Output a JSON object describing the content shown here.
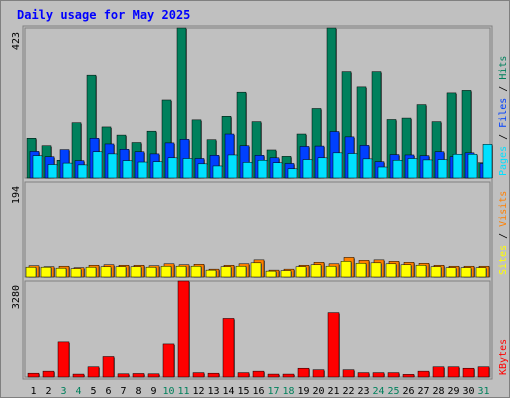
{
  "chart_data": {
    "type": "bar",
    "title": "Daily usage for May 2025",
    "categories": [
      "1",
      "2",
      "3",
      "4",
      "5",
      "6",
      "7",
      "8",
      "9",
      "10",
      "11",
      "12",
      "13",
      "14",
      "15",
      "16",
      "17",
      "18",
      "19",
      "20",
      "21",
      "22",
      "23",
      "24",
      "25",
      "26",
      "27",
      "28",
      "29",
      "30",
      "31"
    ],
    "weekend_days": [
      "3",
      "4",
      "10",
      "11",
      "17",
      "18",
      "24",
      "25",
      "31"
    ],
    "panels": [
      {
        "name": "traffic",
        "max_label": "423",
        "ylim": [
          0,
          423
        ],
        "side_labels": [
          "Pages",
          "Files",
          "Hits"
        ],
        "series": [
          {
            "name": "Hits",
            "color": "#00805c",
            "values": [
              112,
              91,
              50,
              156,
              290,
              144,
              121,
              100,
              132,
              220,
              423,
              164,
              108,
              174,
              242,
              159,
              79,
              61,
              124,
              196,
              423,
              300,
              257,
              300,
              165,
              169,
              207,
              159,
              240,
              247,
              43
            ]
          },
          {
            "name": "Files",
            "color": "#0040ff",
            "values": [
              75,
              60,
              80,
              49,
              112,
              96,
              81,
              74,
              68,
              99,
              109,
              55,
              64,
              124,
              91,
              64,
              57,
              41,
              89,
              90,
              131,
              116,
              92,
              46,
              66,
              65,
              63,
              74,
              60,
              71,
              41
            ]
          },
          {
            "name": "Pages",
            "color": "#00e0ff",
            "values": [
              63,
              38,
              42,
              37,
              74,
              68,
              49,
              45,
              46,
              57,
              55,
              40,
              34,
              65,
              44,
              50,
              43,
              26,
              52,
              57,
              71,
              69,
              54,
              31,
              50,
              55,
              51,
              52,
              67,
              67,
              95
            ]
          }
        ]
      },
      {
        "name": "visits",
        "max_label": "194",
        "ylim": [
          0,
          194
        ],
        "side_labels": [
          "Sites",
          "Visits"
        ],
        "series": [
          {
            "name": "Visits",
            "color": "#ff8000",
            "values": [
              23,
              21,
              22,
              19,
              24,
              25,
              24,
              24,
              23,
              27,
              25,
              26,
              16,
              24,
              27,
              35,
              14,
              16,
              24,
              30,
              27,
              40,
              34,
              35,
              32,
              30,
              28,
              24,
              22,
              22,
              22
            ]
          },
          {
            "name": "Sites",
            "color": "#ffff00",
            "values": [
              20,
              20,
              18,
              17,
              20,
              21,
              21,
              21,
              20,
              22,
              22,
              22,
              14,
              21,
              22,
              29,
              12,
              13,
              21,
              25,
              22,
              32,
              28,
              29,
              27,
              25,
              24,
              21,
              19,
              19,
              19
            ]
          }
        ]
      },
      {
        "name": "kbytes",
        "max_label": "3280",
        "ylim": [
          0,
          3280
        ],
        "side_labels": [
          "KBytes"
        ],
        "series": [
          {
            "name": "KBytes",
            "color": "#ff0000",
            "values": [
              130,
              200,
              1200,
              100,
              350,
              700,
              110,
              120,
              110,
              1130,
              3280,
              150,
              130,
              2000,
              150,
              200,
              100,
              100,
              300,
              250,
              2200,
              250,
              150,
              150,
              150,
              90,
              200,
              350,
              350,
              300,
              350
            ]
          }
        ]
      }
    ],
    "colors": {
      "title": "#0000ff",
      "weekend_label": "#00805c",
      "weekday_label": "#000000",
      "plot_background": "#c0c0c0",
      "divider": "#808080"
    }
  }
}
